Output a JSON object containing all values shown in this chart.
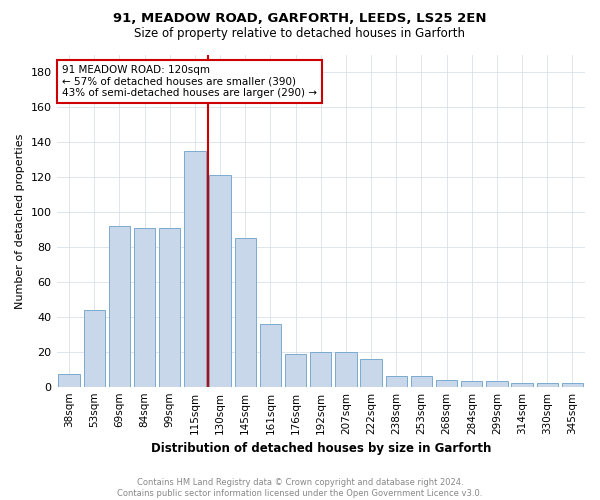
{
  "title1": "91, MEADOW ROAD, GARFORTH, LEEDS, LS25 2EN",
  "title2": "Size of property relative to detached houses in Garforth",
  "xlabel": "Distribution of detached houses by size in Garforth",
  "ylabel": "Number of detached properties",
  "categories": [
    "38sqm",
    "53sqm",
    "69sqm",
    "84sqm",
    "99sqm",
    "115sqm",
    "130sqm",
    "145sqm",
    "161sqm",
    "176sqm",
    "192sqm",
    "207sqm",
    "222sqm",
    "238sqm",
    "253sqm",
    "268sqm",
    "284sqm",
    "299sqm",
    "314sqm",
    "330sqm",
    "345sqm"
  ],
  "values": [
    7,
    44,
    92,
    91,
    91,
    135,
    121,
    85,
    36,
    19,
    20,
    20,
    16,
    6,
    6,
    4,
    3,
    3,
    2,
    2,
    2
  ],
  "redline_x": 5.5,
  "bar_color": "#c8d8ea",
  "bar_edge_color": "#7aabcf",
  "highlight_color": "#cc0000",
  "annotation_text": "91 MEADOW ROAD: 120sqm\n← 57% of detached houses are smaller (390)\n43% of semi-detached houses are larger (290) →",
  "annotation_box_color": "#ffffff",
  "annotation_box_edge": "#cc0000",
  "ylim": [
    0,
    190
  ],
  "yticks": [
    0,
    20,
    40,
    60,
    80,
    100,
    120,
    140,
    160,
    180
  ],
  "footer_text": "Contains HM Land Registry data © Crown copyright and database right 2024.\nContains public sector information licensed under the Open Government Licence v3.0.",
  "bg_color": "#ffffff",
  "grid_color": "#d8e0e8"
}
